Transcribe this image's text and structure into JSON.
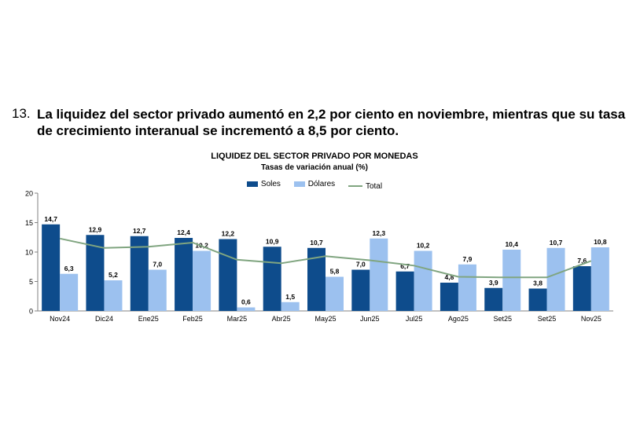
{
  "heading": {
    "number": "13.",
    "text": "La liquidez del sector privado aumentó en 2,2 por ciento en noviembre, mientras que su tasa de crecimiento interanual se incrementó a 8,5 por ciento."
  },
  "colors": {
    "soles": "#0e4c8c",
    "dolares": "#9cc1ef",
    "total": "#80a580"
  },
  "chart_data": {
    "type": "bar",
    "title": "LIQUIDEZ DEL SECTOR PRIVADO POR MONEDAS",
    "subtitle": "Tasas de variación anual (%)",
    "xlabel": "",
    "ylabel": "",
    "ylim": [
      0,
      20
    ],
    "yticks": [
      0,
      5,
      10,
      15,
      20
    ],
    "categories": [
      "Nov24",
      "Dic24",
      "Ene25",
      "Feb25",
      "Mar25",
      "Abr25",
      "May25",
      "Jun25",
      "Jul25",
      "Ago25",
      "Set25",
      "Set25",
      "Nov25"
    ],
    "series": [
      {
        "name": "Soles",
        "kind": "bar",
        "values": [
          14.7,
          12.9,
          12.7,
          12.4,
          12.2,
          10.9,
          10.7,
          7.0,
          6.7,
          4.8,
          3.9,
          3.8,
          7.6
        ],
        "labels": [
          "14,7",
          "12,9",
          "12,7",
          "12,4",
          "12,2",
          "10,9",
          "10,7",
          "7,0",
          "6,7",
          "4,8",
          "3,9",
          "3,8",
          "7,6"
        ]
      },
      {
        "name": "Dólares",
        "kind": "bar",
        "values": [
          6.3,
          5.2,
          7.0,
          10.2,
          0.6,
          1.5,
          5.8,
          12.3,
          10.2,
          7.9,
          10.4,
          10.7,
          10.8
        ],
        "labels": [
          "6,3",
          "5,2",
          "7,0",
          "10,2",
          "0,6",
          "1,5",
          "5,8",
          "12,3",
          "10,2",
          "7,9",
          "10,4",
          "10,7",
          "10,8"
        ]
      },
      {
        "name": "Total",
        "kind": "line",
        "values": [
          12.3,
          10.7,
          10.9,
          11.6,
          8.7,
          8.1,
          9.3,
          8.6,
          7.7,
          5.8,
          5.7,
          5.7,
          8.5
        ]
      }
    ],
    "legend_position": "top-center",
    "grid": false
  }
}
